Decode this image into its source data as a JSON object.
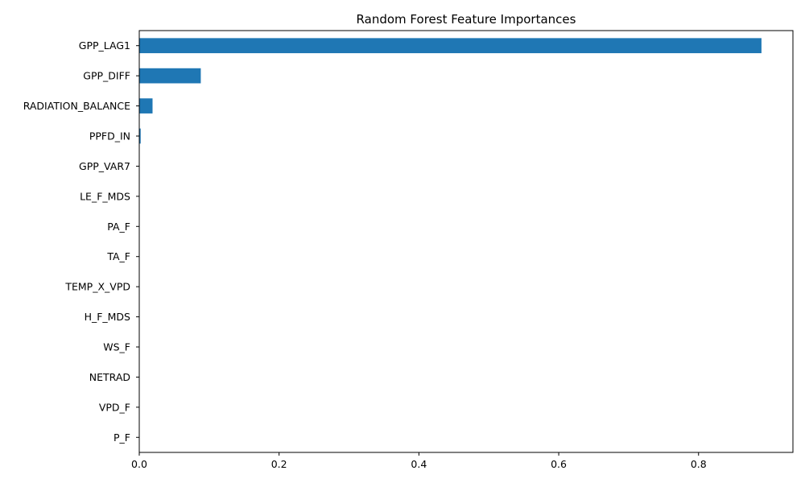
{
  "chart_data": {
    "type": "bar",
    "orientation": "horizontal",
    "title": "Random Forest Feature Importances",
    "xlabel": "",
    "ylabel": "",
    "xlim": [
      0,
      0.935
    ],
    "xticks": [
      0.0,
      0.2,
      0.4,
      0.6,
      0.8
    ],
    "xtick_labels": [
      "0.0",
      "0.2",
      "0.4",
      "0.6",
      "0.8"
    ],
    "grid": false,
    "bar_color": "#1f77b4",
    "categories": [
      "GPP_LAG1",
      "GPP_DIFF",
      "RADIATION_BALANCE",
      "PPFD_IN",
      "GPP_VAR7",
      "LE_F_MDS",
      "PA_F",
      "TA_F",
      "TEMP_X_VPD",
      "H_F_MDS",
      "WS_F",
      "NETRAD",
      "VPD_F",
      "P_F"
    ],
    "values": [
      0.89,
      0.088,
      0.019,
      0.002,
      0.0005,
      0.0004,
      0.0003,
      0.0003,
      0.0002,
      0.0002,
      0.0002,
      0.0001,
      0.0001,
      0.0001
    ]
  }
}
